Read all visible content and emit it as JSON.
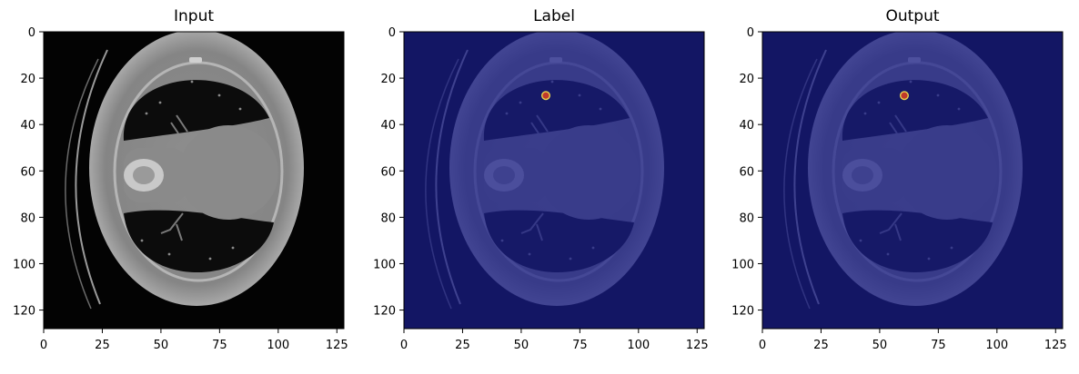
{
  "panels": [
    {
      "title": "Input",
      "overlay": false,
      "label_overlay": false
    },
    {
      "title": "Label",
      "overlay": true,
      "label_overlay": true
    },
    {
      "title": "Output",
      "overlay": true,
      "label_overlay": true
    }
  ],
  "axes": {
    "x_ticks": [
      "0",
      "25",
      "50",
      "75",
      "100",
      "125"
    ],
    "y_ticks": [
      "0",
      "20",
      "40",
      "60",
      "80",
      "100",
      "120"
    ],
    "range": [
      0,
      128
    ]
  },
  "colors": {
    "overlay": "#1a1f8a",
    "label_spot": "#c0392b",
    "label_rim": "#e8d44d"
  }
}
